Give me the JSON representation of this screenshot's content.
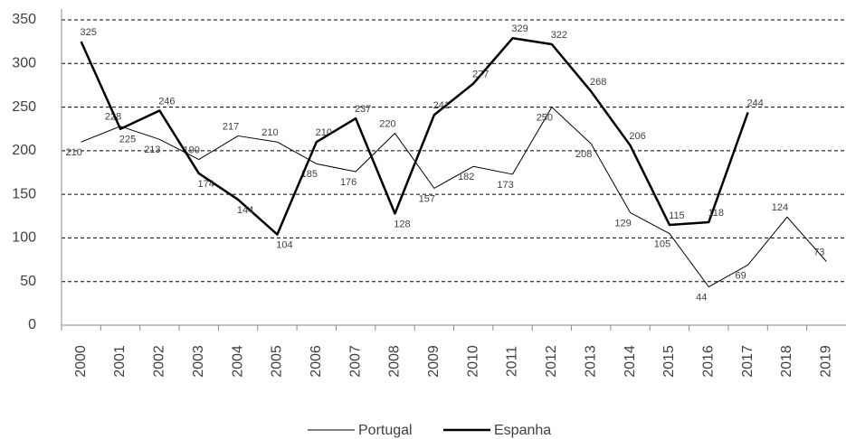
{
  "chart_data": {
    "type": "line",
    "categories": [
      "2000",
      "2001",
      "2002",
      "2003",
      "2004",
      "2005",
      "2006",
      "2007",
      "2008",
      "2009",
      "2010",
      "2011",
      "2012",
      "2013",
      "2014",
      "2015",
      "2016",
      "2017",
      "2018",
      "2019"
    ],
    "series": [
      {
        "name": "Portugal",
        "color": "#000000",
        "values": [
          210,
          228,
          213,
          190,
          217,
          210,
          185,
          176,
          220,
          157,
          182,
          173,
          250,
          208,
          129,
          105,
          44,
          69,
          124,
          73
        ]
      },
      {
        "name": "Espanha",
        "color": "#000000",
        "values": [
          325,
          225,
          246,
          174,
          144,
          104,
          210,
          237,
          128,
          241,
          277,
          329,
          322,
          268,
          206,
          115,
          118,
          244,
          null,
          null
        ]
      }
    ],
    "ylim": [
      0,
      350
    ],
    "yticks": [
      0,
      50,
      100,
      150,
      200,
      250,
      300,
      350
    ],
    "grid": true,
    "legend": "bottom"
  }
}
